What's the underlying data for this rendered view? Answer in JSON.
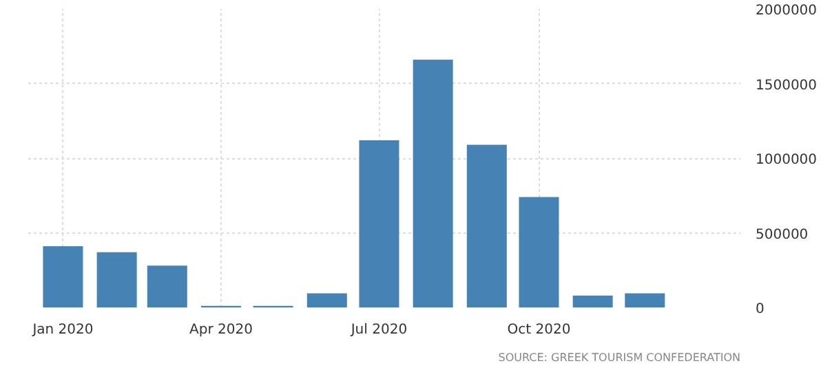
{
  "chart_data": {
    "type": "bar",
    "x": [
      "2020-01",
      "2020-02",
      "2020-03",
      "2020-04",
      "2020-05",
      "2020-06",
      "2020-07",
      "2020-08",
      "2020-09",
      "2020-10",
      "2020-11",
      "2020-12"
    ],
    "values": [
      410000,
      370000,
      280000,
      10000,
      10000,
      95000,
      1120000,
      1660000,
      1090000,
      740000,
      80000,
      95000
    ],
    "color": "#4682b4",
    "xlim": [
      "2019-12-12",
      "2021-01-25"
    ],
    "xticks": [
      {
        "value": "2020-01",
        "label": "Jan 2020"
      },
      {
        "value": "2020-04",
        "label": "Apr 2020"
      },
      {
        "value": "2020-07",
        "label": "Jul 2020"
      },
      {
        "value": "2020-10",
        "label": "Oct 2020"
      }
    ],
    "ylim": [
      0,
      2000000
    ],
    "yticks": [
      0,
      500000,
      1000000,
      1500000,
      2000000
    ],
    "grid": true,
    "annotations": [
      "SOURCE: GREEK TOURISM CONFEDERATION"
    ]
  }
}
